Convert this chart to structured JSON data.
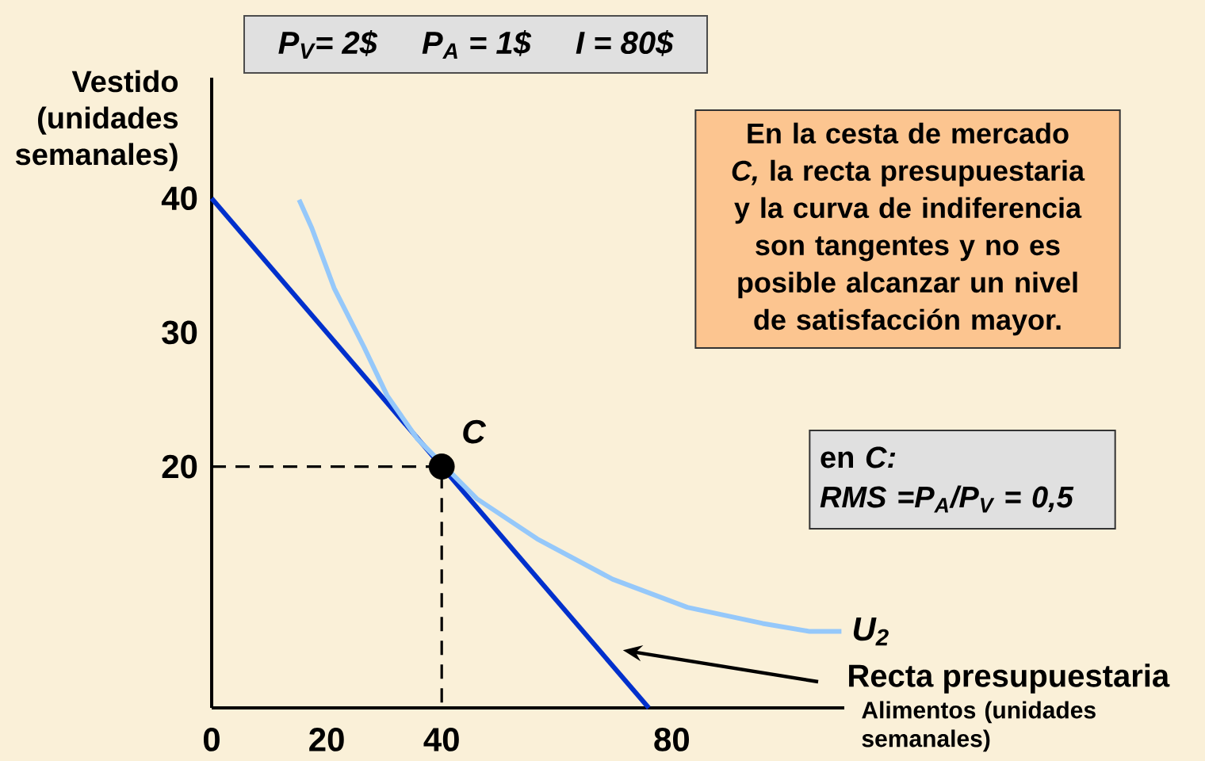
{
  "chart_data": {
    "type": "line",
    "xlabel": "Alimentos (unidades semanales)",
    "ylabel": "Vestido (unidades semanales)",
    "xlim": [
      0,
      110
    ],
    "ylim": [
      2,
      49
    ],
    "xticks": [
      0,
      20,
      40,
      80
    ],
    "yticks": [
      20,
      30,
      40
    ],
    "legend": false,
    "grid": false,
    "annotations": [
      "P$_{V}$= 2$",
      "P$_{A}$ = 1$",
      "I = 80$",
      "En la cesta de mercado *C,* la recta presupuestaria y la curva de indiferencia son tangentes y no es posible alcanzar un nivel de satisfacción mayor.",
      "en *C:*",
      "RMS =P$_{A}$/P$_{V}$ = 0,5",
      {
        "text": "C",
        "x": 40,
        "y": 20
      }
    ],
    "series": [
      {
        "name": "Recta presupuestaria",
        "color": "#0030cc",
        "x": [
          0,
          76
        ],
        "values": [
          40,
          2
        ]
      },
      {
        "name": "U$_{2}$",
        "color": "#95c8fa",
        "x": [
          15.2,
          17.4,
          21.3,
          26.5,
          30.5,
          35.7,
          46.1,
          56.6,
          69.7,
          82.7,
          95.8,
          104,
          109.5
        ],
        "values": [
          39.9,
          37.8,
          33.3,
          28.9,
          25.3,
          22.1,
          17.6,
          14.6,
          11.6,
          9.5,
          8.3,
          7.7,
          7.7
        ]
      },
      {
        "type": "line",
        "line_style": "dashed",
        "color": "#000000",
        "x": [
          0,
          40,
          40
        ],
        "values": [
          20,
          20,
          2
        ]
      },
      {
        "type": "scatter",
        "marker": "circle",
        "color": "#000000",
        "x": [
          40
        ],
        "values": [
          20
        ]
      }
    ]
  }
}
